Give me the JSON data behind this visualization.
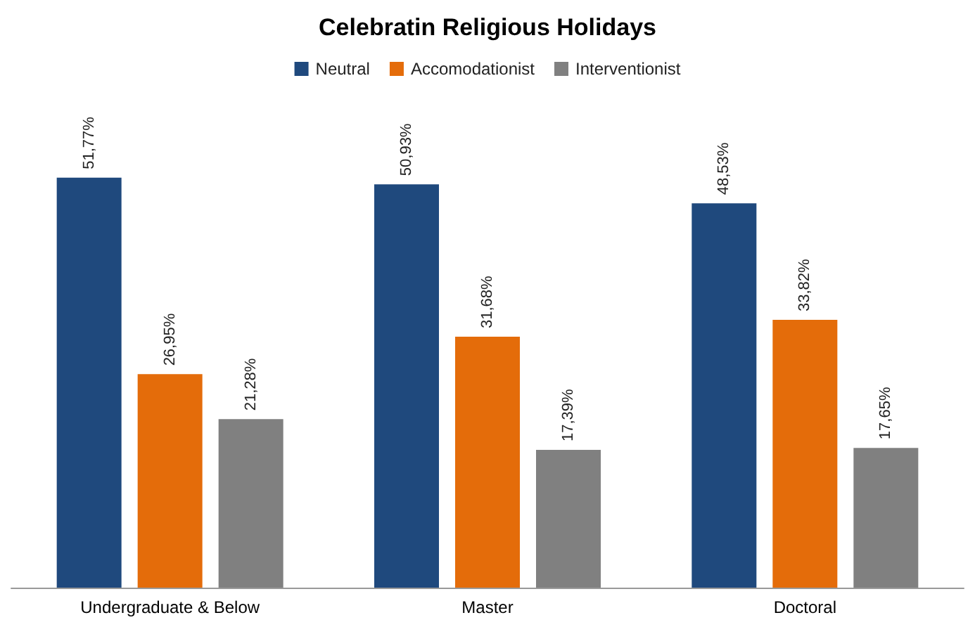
{
  "chart_data": {
    "type": "bar",
    "title": "Celebratin Religious Holidays",
    "categories": [
      "Undergraduate & Below",
      "Master",
      "Doctoral"
    ],
    "series": [
      {
        "name": "Neutral",
        "color": "#1f497d",
        "values": [
          51.77,
          50.93,
          48.53
        ],
        "value_labels": [
          "51,77%",
          "50,93%",
          "48,53%"
        ]
      },
      {
        "name": "Accomodationist",
        "color": "#e46c0a",
        "values": [
          26.95,
          31.68,
          33.82
        ],
        "value_labels": [
          "26,95%",
          "31,68%",
          "33,82%"
        ]
      },
      {
        "name": "Interventionist",
        "color": "#808080",
        "values": [
          21.28,
          17.39,
          17.65
        ],
        "value_labels": [
          "21,28%",
          "17,39%",
          "17,65%"
        ]
      }
    ],
    "legend": "top",
    "grid": false,
    "tick_labels": "x"
  }
}
